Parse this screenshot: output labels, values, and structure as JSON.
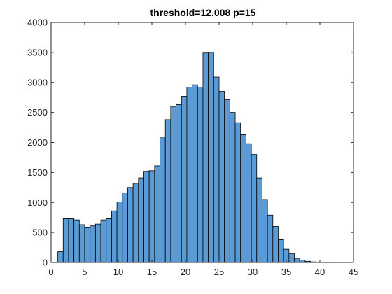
{
  "chart_data": {
    "type": "bar",
    "title": "threshold=12.008 p=15",
    "xlabel": "",
    "ylabel": "",
    "xlim": [
      0,
      45
    ],
    "ylim": [
      0,
      4000
    ],
    "xticks": [
      0,
      5,
      10,
      15,
      20,
      25,
      30,
      35,
      40,
      45
    ],
    "yticks": [
      0,
      500,
      1000,
      1500,
      2000,
      2500,
      3000,
      3500,
      4000
    ],
    "grid": false,
    "bar_color": "#5b9bd5",
    "edge_color": "#000000",
    "bin_edges": [
      1,
      1.8,
      2.6,
      3.4,
      4.2,
      5,
      5.8,
      6.6,
      7.4,
      8.2,
      9,
      9.8,
      10.6,
      11.4,
      12.2,
      13,
      13.8,
      14.6,
      15.4,
      16.2,
      17,
      17.8,
      18.6,
      19.4,
      20.2,
      21,
      21.8,
      22.6,
      23.4,
      24.2,
      25,
      25.8,
      26.6,
      27.4,
      28.2,
      29,
      29.8,
      30.6,
      31.4,
      32.2,
      33,
      33.8,
      34.6,
      35.4,
      36.2,
      37,
      37.8,
      38.6,
      39.4,
      40.2,
      41,
      41.8,
      42.6,
      43.4
    ],
    "values": [
      180,
      730,
      730,
      710,
      630,
      590,
      610,
      640,
      710,
      730,
      860,
      1010,
      1160,
      1250,
      1320,
      1410,
      1520,
      1530,
      1610,
      2090,
      2380,
      2600,
      2630,
      2770,
      2920,
      2960,
      2920,
      3490,
      3500,
      3090,
      2850,
      2710,
      2500,
      2330,
      2130,
      1980,
      1800,
      1410,
      1050,
      790,
      600,
      380,
      220,
      150,
      70,
      40,
      20,
      10,
      5,
      3,
      2,
      1,
      1
    ]
  }
}
